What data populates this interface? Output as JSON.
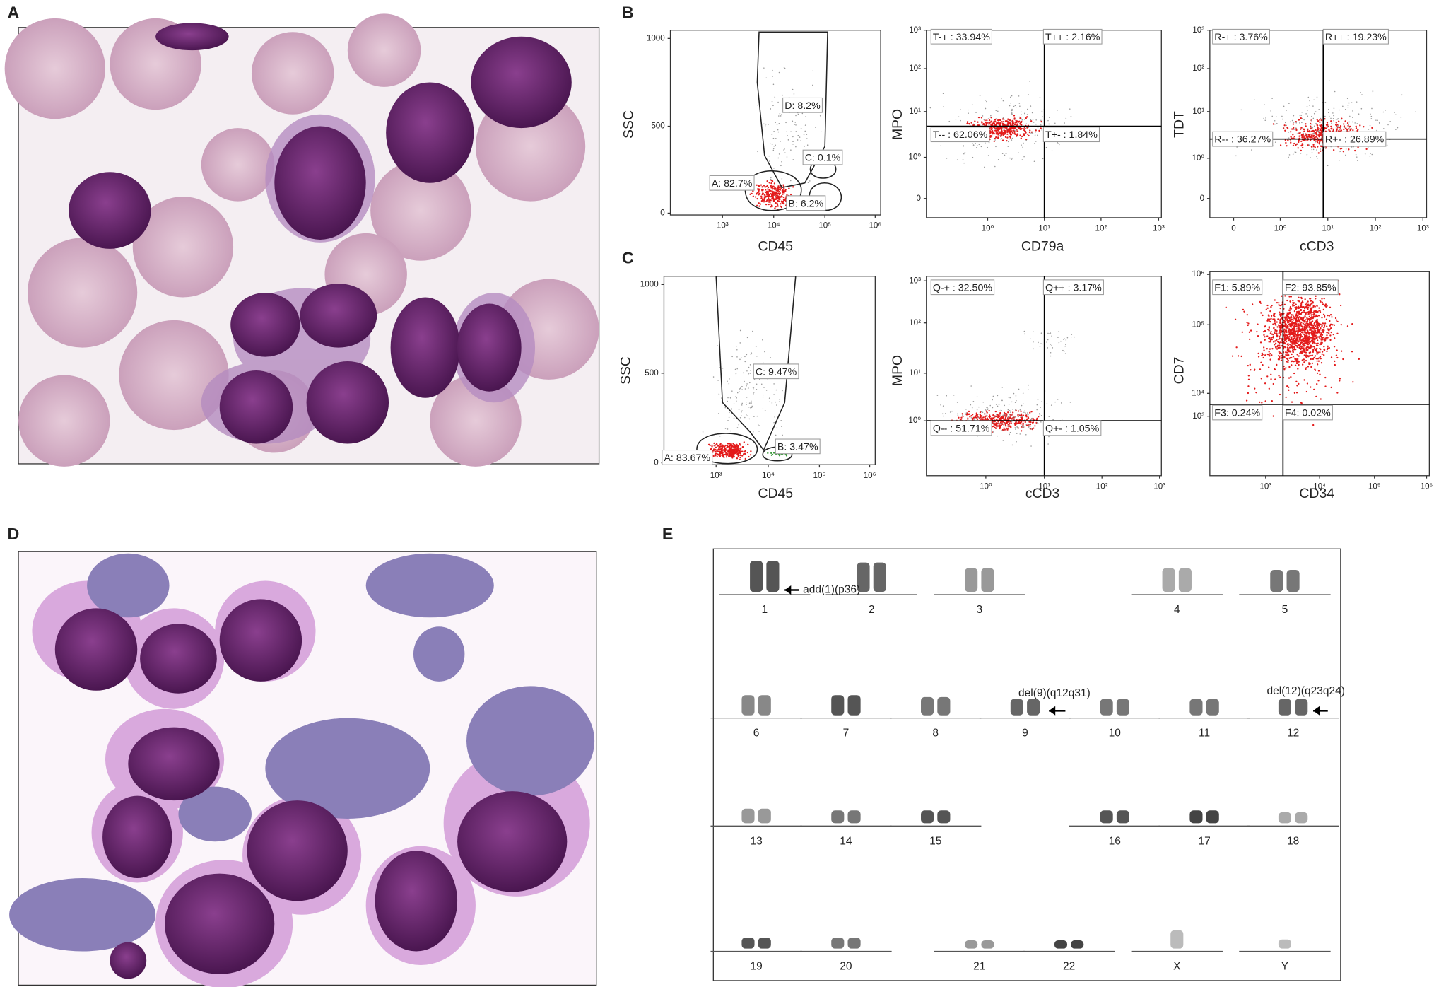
{
  "panel_labels": [
    "A",
    "B",
    "C",
    "D",
    "E"
  ],
  "flow_plots": [
    {
      "x_label": "CD45",
      "y_label": "SSC",
      "x_ticks": [
        "10³",
        "10⁴",
        "10⁵",
        "10⁶"
      ],
      "y_ticks": [
        "0",
        "500",
        "1000"
      ],
      "gates": [
        "A: 82.7%",
        "B: 6.2%",
        "C: 0.1%",
        "D: 8.2%"
      ]
    },
    {
      "x_label": "CD79a",
      "y_label": "MPO",
      "x_ticks": [
        "10⁰",
        "10¹",
        "10²",
        "10³"
      ],
      "y_ticks": [
        "0",
        "10⁰",
        "10¹",
        "10²",
        "10³"
      ],
      "gates": [
        "T-+ : 33.94%",
        "T++ : 2.16%",
        "T-- : 62.06%",
        "T+- : 1.84%"
      ]
    },
    {
      "x_label": "cCD3",
      "y_label": "TDT",
      "x_ticks": [
        "0",
        "10⁰",
        "10¹",
        "10²",
        "10³"
      ],
      "y_ticks": [
        "0",
        "10⁰",
        "10¹",
        "10²",
        "10³"
      ],
      "gates": [
        "R-+ : 3.76%",
        "R++ : 19.23%",
        "R-- : 36.27%",
        "R+- : 26.89%"
      ]
    },
    {
      "x_label": "CD45",
      "y_label": "SSC",
      "x_ticks": [
        "10³",
        "10⁴",
        "10⁵",
        "10⁶"
      ],
      "y_ticks": [
        "0",
        "500",
        "1000"
      ],
      "gates": [
        "C: 9.47%",
        "A: 83.67%",
        "B: 3.47%"
      ]
    },
    {
      "x_label": "cCD3",
      "y_label": "MPO",
      "x_ticks": [
        "10⁰",
        "10¹",
        "10²",
        "10³"
      ],
      "y_ticks": [
        "10⁰",
        "10¹",
        "10²",
        "10³"
      ],
      "gates": [
        "Q-+ : 32.50%",
        "Q++ : 3.17%",
        "Q-- : 51.71%",
        "Q+- : 1.05%"
      ]
    },
    {
      "x_label": "CD34",
      "y_label": "CD7",
      "x_ticks": [
        "10³",
        "10⁴",
        "10⁵",
        "10⁶"
      ],
      "y_ticks": [
        "10³",
        "10⁴",
        "10⁵",
        "10⁶"
      ],
      "gates": [
        "F1: 5.89%",
        "F2: 93.85%",
        "F3: 0.24%",
        "F4: 0.02%"
      ]
    }
  ],
  "karyotype": {
    "chromosomes": [
      "1",
      "2",
      "3",
      "4",
      "5",
      "6",
      "7",
      "8",
      "9",
      "10",
      "11",
      "12",
      "13",
      "14",
      "15",
      "16",
      "17",
      "18",
      "19",
      "20",
      "21",
      "22",
      "X",
      "Y"
    ],
    "annotations": [
      "add(1)(p36)",
      "del(9)(q12q31)",
      "del(12)(q23q24)"
    ]
  }
}
